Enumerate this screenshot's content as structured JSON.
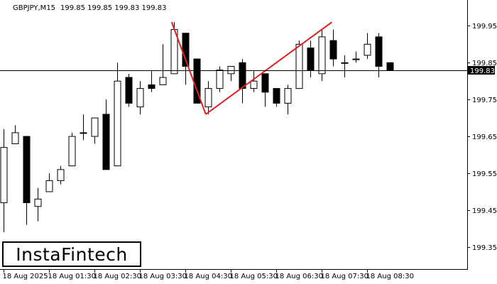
{
  "chart_data": {
    "type": "candlestick",
    "symbol_header": "GBPJPY,M15",
    "ohlc_header": "199.85 199.85 199.83 199.83",
    "current_price_label": "199.83",
    "current_price": 199.83,
    "ylim": [
      199.29,
      200.02
    ],
    "y_ticks": [
      {
        "value": 199.95,
        "label": "199.95"
      },
      {
        "value": 199.85,
        "label": "199.85"
      },
      {
        "value": 199.75,
        "label": "199.75"
      },
      {
        "value": 199.65,
        "label": "199.65"
      },
      {
        "value": 199.55,
        "label": "199.55"
      },
      {
        "value": 199.45,
        "label": "199.45"
      },
      {
        "value": 199.35,
        "label": "199.35"
      }
    ],
    "x_ticks": [
      {
        "index": 0,
        "label": "18 Aug 2025"
      },
      {
        "index": 4,
        "label": "18 Aug 01:30"
      },
      {
        "index": 8,
        "label": "18 Aug 02:30"
      },
      {
        "index": 12,
        "label": "18 Aug 03:30"
      },
      {
        "index": 16,
        "label": "18 Aug 04:30"
      },
      {
        "index": 20,
        "label": "18 Aug 05:30"
      },
      {
        "index": 24,
        "label": "18 Aug 06:30"
      },
      {
        "index": 28,
        "label": "18 Aug 07:30"
      },
      {
        "index": 32,
        "label": "18 Aug 08:30"
      }
    ],
    "candles": [
      {
        "o": 199.47,
        "h": 199.67,
        "l": 199.39,
        "c": 199.62
      },
      {
        "o": 199.63,
        "h": 199.68,
        "l": 199.63,
        "c": 199.66
      },
      {
        "o": 199.65,
        "h": 199.65,
        "l": 199.41,
        "c": 199.47
      },
      {
        "o": 199.46,
        "h": 199.51,
        "l": 199.42,
        "c": 199.48
      },
      {
        "o": 199.5,
        "h": 199.55,
        "l": 199.5,
        "c": 199.53
      },
      {
        "o": 199.53,
        "h": 199.57,
        "l": 199.52,
        "c": 199.56
      },
      {
        "o": 199.57,
        "h": 199.66,
        "l": 199.57,
        "c": 199.65
      },
      {
        "o": 199.66,
        "h": 199.71,
        "l": 199.64,
        "c": 199.66
      },
      {
        "o": 199.65,
        "h": 199.7,
        "l": 199.63,
        "c": 199.7
      },
      {
        "o": 199.71,
        "h": 199.75,
        "l": 199.56,
        "c": 199.56
      },
      {
        "o": 199.57,
        "h": 199.85,
        "l": 199.57,
        "c": 199.8
      },
      {
        "o": 199.81,
        "h": 199.82,
        "l": 199.73,
        "c": 199.74
      },
      {
        "o": 199.73,
        "h": 199.8,
        "l": 199.71,
        "c": 199.78
      },
      {
        "o": 199.79,
        "h": 199.83,
        "l": 199.77,
        "c": 199.78
      },
      {
        "o": 199.79,
        "h": 199.9,
        "l": 199.79,
        "c": 199.81
      },
      {
        "o": 199.82,
        "h": 199.96,
        "l": 199.82,
        "c": 199.94
      },
      {
        "o": 199.93,
        "h": 199.93,
        "l": 199.79,
        "c": 199.84
      },
      {
        "o": 199.86,
        "h": 199.86,
        "l": 199.74,
        "c": 199.74
      },
      {
        "o": 199.73,
        "h": 199.8,
        "l": 199.71,
        "c": 199.78
      },
      {
        "o": 199.78,
        "h": 199.84,
        "l": 199.77,
        "c": 199.83
      },
      {
        "o": 199.82,
        "h": 199.84,
        "l": 199.8,
        "c": 199.84
      },
      {
        "o": 199.85,
        "h": 199.86,
        "l": 199.74,
        "c": 199.78
      },
      {
        "o": 199.78,
        "h": 199.83,
        "l": 199.77,
        "c": 199.8
      },
      {
        "o": 199.82,
        "h": 199.82,
        "l": 199.73,
        "c": 199.77
      },
      {
        "o": 199.78,
        "h": 199.78,
        "l": 199.73,
        "c": 199.74
      },
      {
        "o": 199.74,
        "h": 199.79,
        "l": 199.71,
        "c": 199.78
      },
      {
        "o": 199.78,
        "h": 199.91,
        "l": 199.78,
        "c": 199.9
      },
      {
        "o": 199.89,
        "h": 199.91,
        "l": 199.81,
        "c": 199.83
      },
      {
        "o": 199.82,
        "h": 199.94,
        "l": 199.8,
        "c": 199.92
      },
      {
        "o": 199.91,
        "h": 199.94,
        "l": 199.84,
        "c": 199.86
      },
      {
        "o": 199.85,
        "h": 199.87,
        "l": 199.81,
        "c": 199.85
      },
      {
        "o": 199.86,
        "h": 199.88,
        "l": 199.85,
        "c": 199.86
      },
      {
        "o": 199.87,
        "h": 199.93,
        "l": 199.86,
        "c": 199.9
      },
      {
        "o": 199.92,
        "h": 199.93,
        "l": 199.81,
        "c": 199.84
      },
      {
        "o": 199.85,
        "h": 199.85,
        "l": 199.83,
        "c": 199.83
      }
    ],
    "pattern_lines": [
      {
        "from": {
          "index": 14.8,
          "value": 199.96
        },
        "to": {
          "index": 17.8,
          "value": 199.71
        }
      },
      {
        "from": {
          "index": 17.8,
          "value": 199.71
        },
        "to": {
          "index": 28.9,
          "value": 199.96
        }
      }
    ],
    "colors": {
      "background": "#ffffff",
      "bull_body": "#ffffff",
      "bear_body": "#000000",
      "candle_outline": "#000000",
      "pattern_line": "#e41e1e",
      "price_line": "#000000",
      "price_label_bg": "#000000",
      "price_label_text": "#ffffff",
      "axis": "#000000"
    }
  },
  "logo": {
    "text": "InstaFintech"
  }
}
